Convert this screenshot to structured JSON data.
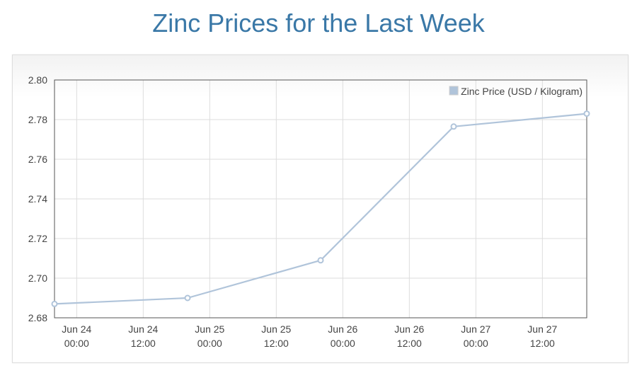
{
  "page": {
    "title": "Zinc Prices for the Last Week"
  },
  "chart_data": {
    "type": "line",
    "title": "Zinc Prices for the Last Week",
    "xlabel": "",
    "ylabel": "",
    "xlim": [
      "Jun 23 20:00",
      "Jun 27 20:00"
    ],
    "ylim": [
      2.68,
      2.8
    ],
    "y_ticks": [
      "2.80",
      "2.78",
      "2.76",
      "2.74",
      "2.72",
      "2.70",
      "2.68"
    ],
    "x_ticks": [
      {
        "line1": "Jun 24",
        "line2": "00:00"
      },
      {
        "line1": "Jun 24",
        "line2": "12:00"
      },
      {
        "line1": "Jun 25",
        "line2": "00:00"
      },
      {
        "line1": "Jun 25",
        "line2": "12:00"
      },
      {
        "line1": "Jun 26",
        "line2": "00:00"
      },
      {
        "line1": "Jun 26",
        "line2": "12:00"
      },
      {
        "line1": "Jun 27",
        "line2": "00:00"
      },
      {
        "line1": "Jun 27",
        "line2": "12:00"
      }
    ],
    "grid": true,
    "legend_position": "top-right",
    "series": [
      {
        "name": "Zinc Price (USD / Kilogram)",
        "color": "#b0c4da",
        "points": [
          {
            "x": "Jun 23 20:00",
            "y": 2.687
          },
          {
            "x": "Jun 24 20:00",
            "y": 2.69
          },
          {
            "x": "Jun 25 20:00",
            "y": 2.709
          },
          {
            "x": "Jun 26 20:00",
            "y": 2.7765
          },
          {
            "x": "Jun 27 20:00",
            "y": 2.783
          }
        ]
      }
    ]
  }
}
